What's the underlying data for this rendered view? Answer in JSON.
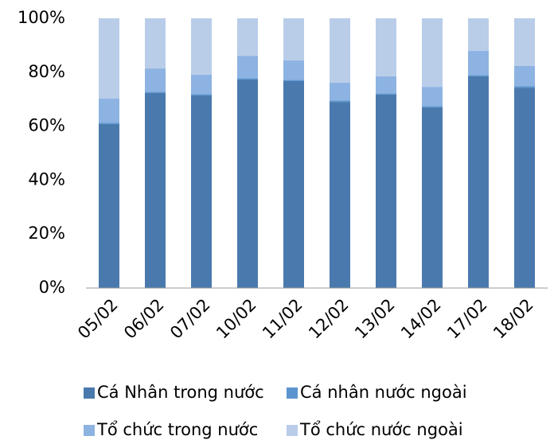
{
  "chart_data": {
    "type": "stacked_bar",
    "categories": [
      "05/02",
      "06/02",
      "07/02",
      "10/02",
      "11/02",
      "12/02",
      "13/02",
      "14/02",
      "17/02",
      "18/02"
    ],
    "series": [
      {
        "name": "Cá Nhân trong nước",
        "color": "#4a7aad",
        "values": [
          60.8,
          72.3,
          71.4,
          77.3,
          76.7,
          69,
          71.7,
          67,
          78.5,
          74.3
        ]
      },
      {
        "name": "Cá nhân nước ngoài",
        "color": "#5b95d0",
        "values": [
          0.5,
          0.5,
          0.5,
          0.5,
          0.5,
          0.5,
          0.5,
          0.5,
          0.5,
          0.5
        ]
      },
      {
        "name": "Tổ chức trong nước",
        "color": "#8db3e2",
        "values": [
          9,
          8.6,
          7.2,
          8.3,
          7.2,
          6.6,
          6.3,
          7.1,
          8.9,
          7.5
        ]
      },
      {
        "name": "Tổ chức nước ngoài",
        "color": "#b9cde9",
        "values": [
          29.7,
          18.6,
          20.9,
          13.9,
          15.6,
          23.9,
          21.5,
          25.4,
          12.1,
          17.7
        ]
      }
    ],
    "ylim": [
      0,
      100
    ],
    "yticks": [
      {
        "value": 0,
        "label": "0%"
      },
      {
        "value": 20,
        "label": "20%"
      },
      {
        "value": 40,
        "label": "40%"
      },
      {
        "value": 60,
        "label": "60%"
      },
      {
        "value": 80,
        "label": "80%"
      },
      {
        "value": 100,
        "label": "100%"
      }
    ],
    "grid": false,
    "legend": "bottom"
  }
}
